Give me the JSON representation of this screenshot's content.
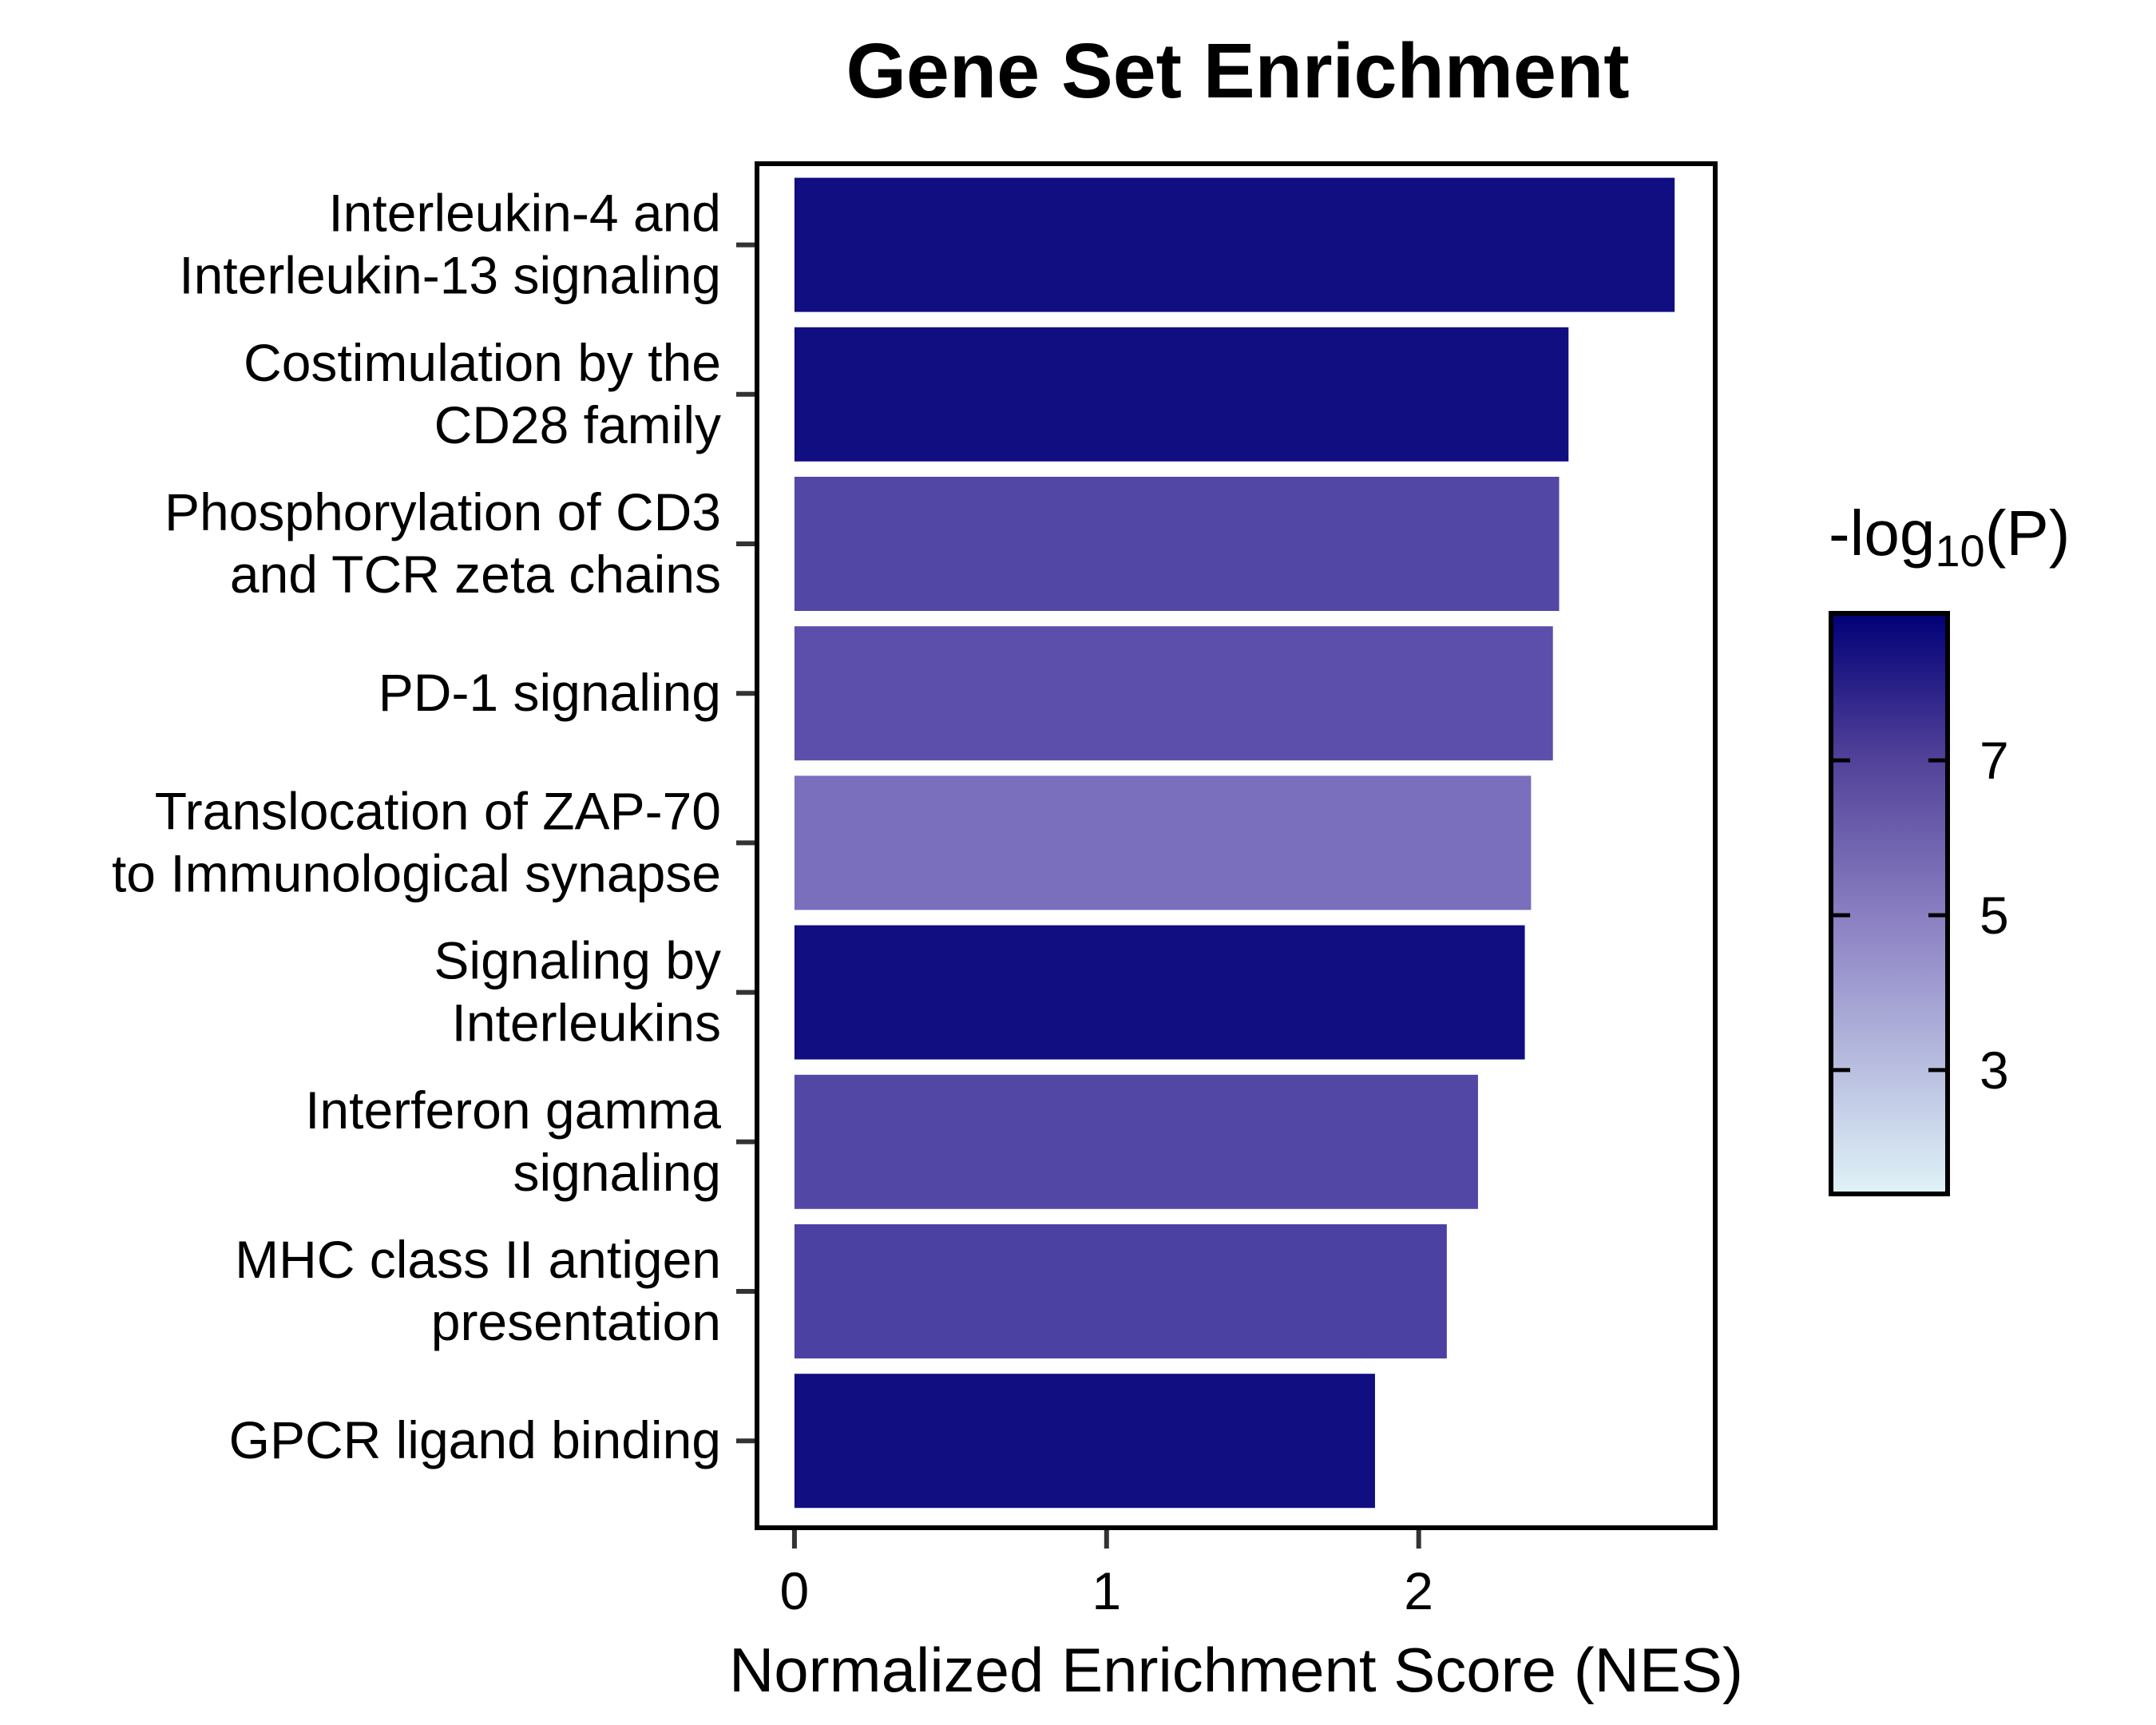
{
  "chart_data": {
    "type": "bar",
    "orientation": "horizontal",
    "title": "Gene Set Enrichment",
    "xlabel": "Normalized Enrichment Score (NES)",
    "ylabel": "",
    "xlim": [
      -0.12,
      2.95
    ],
    "xticks": [
      0,
      1,
      2
    ],
    "grid": false,
    "categories": [
      [
        "Interleukin-4 and",
        "Interleukin-13 signaling"
      ],
      [
        "Costimulation by the",
        "CD28 family"
      ],
      [
        "Phosphorylation of CD3",
        "and TCR zeta chains"
      ],
      [
        "PD-1 signaling"
      ],
      [
        "Translocation of ZAP-70",
        "to Immunological synapse"
      ],
      [
        "Signaling by",
        "Interleukins"
      ],
      [
        "Interferon gamma",
        "signaling"
      ],
      [
        "MHC class II antigen",
        "presentation"
      ],
      [
        "GPCR ligand binding"
      ]
    ],
    "values": [
      2.82,
      2.48,
      2.45,
      2.43,
      2.36,
      2.34,
      2.19,
      2.09,
      1.86
    ],
    "color_values": [
      8.4,
      8.4,
      6.3,
      6.0,
      5.0,
      8.4,
      6.3,
      6.5,
      8.4
    ],
    "colorbar": {
      "title_main": "-log",
      "title_sub": "10",
      "title_end": "(P)",
      "range": [
        1.4,
        8.9
      ],
      "ticks": [
        3,
        5,
        7
      ],
      "low_color": "#e0f3f8",
      "mid_color": "#6a5cb3",
      "high_color": "#000077"
    },
    "legend_position": "right"
  }
}
